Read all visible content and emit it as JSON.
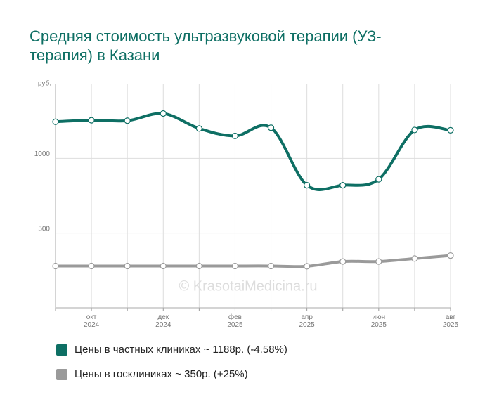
{
  "chart_data": {
    "type": "line",
    "title": "Средняя стоимость ультразвуковой терапии (УЗ-терапия) в Казани",
    "y_label": "руб.",
    "watermark": "© KrasotaiMedicina.ru",
    "categories": [
      null,
      "окт 2024",
      null,
      "дек 2024",
      null,
      "фев 2025",
      null,
      "апр 2025",
      null,
      "июн 2025",
      null,
      "авг 2025"
    ],
    "series": [
      {
        "name": "Цены в частных клиниках ~ 1188р. (-4.58%)",
        "color": "#0e6f64",
        "values": [
          1245,
          1255,
          1252,
          1300,
          1200,
          1150,
          1205,
          820,
          820,
          860,
          1190,
          1188
        ]
      },
      {
        "name": "Цены в госклиниках ~ 350р. (+25%)",
        "color": "#9a9a9a",
        "values": [
          280,
          280,
          280,
          280,
          280,
          280,
          280,
          278,
          310,
          310,
          330,
          350
        ]
      }
    ],
    "ylim": [
      0,
      1500
    ],
    "yticks": [
      500,
      1000
    ],
    "grid": true
  }
}
